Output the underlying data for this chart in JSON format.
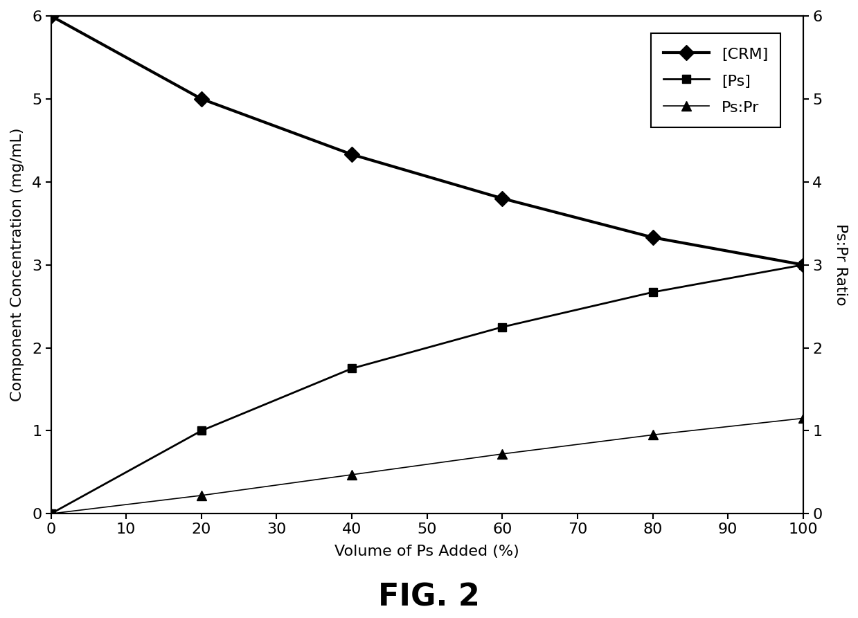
{
  "x": [
    0,
    20,
    40,
    60,
    80,
    100
  ],
  "crm": [
    6.0,
    5.0,
    4.33,
    3.8,
    3.33,
    3.0
  ],
  "ps": [
    0.0,
    1.0,
    1.75,
    2.25,
    2.67,
    3.0
  ],
  "ps_pr": [
    0.0,
    0.22,
    0.47,
    0.72,
    0.95,
    1.15
  ],
  "xlabel": "Volume of Ps Added (%)",
  "ylabel_left": "Component Concentration (mg/mL)",
  "ylabel_right": "Ps:Pr Ratio",
  "title": "FIG. 2",
  "xlim": [
    0,
    100
  ],
  "ylim_left": [
    0,
    6
  ],
  "ylim_right": [
    0,
    6
  ],
  "xticks": [
    0,
    10,
    20,
    30,
    40,
    50,
    60,
    70,
    80,
    90,
    100
  ],
  "yticks_left": [
    0,
    1,
    2,
    3,
    4,
    5,
    6
  ],
  "yticks_right": [
    0,
    1,
    2,
    3,
    4,
    5,
    6
  ],
  "legend_labels": [
    "[CRM]",
    "[Ps]",
    "Ps:Pr"
  ],
  "crm_linewidth": 3.0,
  "ps_linewidth": 2.0,
  "pspr_linewidth": 1.2,
  "crm_markersize": 11,
  "ps_markersize": 9,
  "pspr_markersize": 10,
  "line_color": "black",
  "pspr_color": "#444444",
  "bg_color": "white",
  "tick_labelsize": 16,
  "axis_labelsize": 16,
  "legend_fontsize": 16,
  "title_fontsize": 32
}
